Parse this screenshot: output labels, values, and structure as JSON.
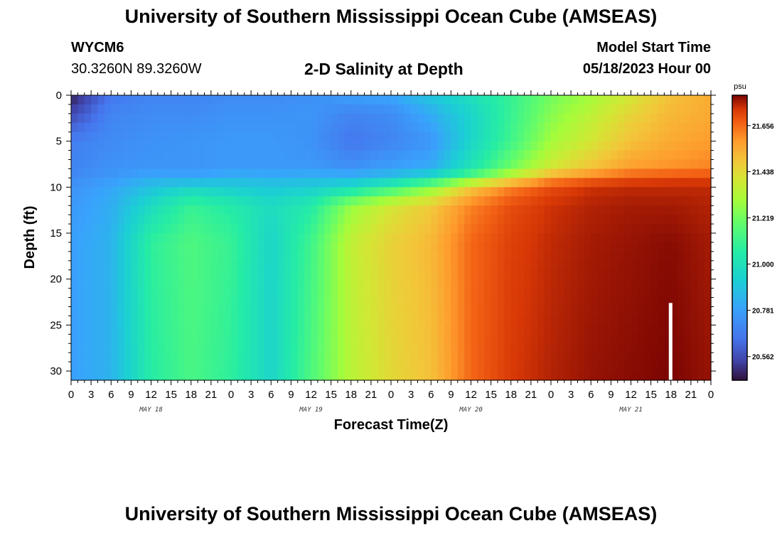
{
  "header": {
    "title": "University of Southern Mississippi Ocean Cube (AMSEAS)",
    "station_id": "WYCM6",
    "station_coords": "30.3260N  89.3260W",
    "plot_title": "2-D Salinity at Depth",
    "model_start_label": "Model Start Time",
    "model_start_value": "05/18/2023 Hour 00"
  },
  "footer": {
    "title": "University of Southern Mississippi Ocean Cube (AMSEAS)"
  },
  "chart_data": {
    "type": "heatmap",
    "xlabel": "Forecast Time(Z)",
    "ylabel": "Depth (ft)",
    "x_tick_labels": [
      "0",
      "3",
      "6",
      "9",
      "12",
      "15",
      "18",
      "21",
      "0",
      "3",
      "6",
      "9",
      "12",
      "15",
      "18",
      "21",
      "0",
      "3",
      "6",
      "9",
      "12",
      "15",
      "18",
      "21",
      "0",
      "3",
      "6",
      "9",
      "12",
      "15",
      "18",
      "21",
      "0"
    ],
    "x_range_hours": [
      0,
      96
    ],
    "date_labels": [
      {
        "label": "MAY 18",
        "hour": 12
      },
      {
        "label": "MAY 19",
        "hour": 36
      },
      {
        "label": "MAY 20",
        "hour": 60
      },
      {
        "label": "MAY 21",
        "hour": 84
      }
    ],
    "y_ticks": [
      0,
      5,
      10,
      15,
      20,
      25,
      30
    ],
    "y_range_ft": [
      0,
      31
    ],
    "y_inverted": true,
    "colorbar": {
      "unit": "psu",
      "range": [
        20.45,
        21.8
      ],
      "ticks": [
        "21.656",
        "21.438",
        "21.219",
        "21.000",
        "20.781",
        "20.562"
      ],
      "tick_values": [
        21.656,
        21.438,
        21.219,
        21.0,
        20.781,
        20.562
      ],
      "colormap": "turbo"
    },
    "current_time_marker_hour": 90,
    "grid": "off",
    "hour_nodes": [
      0,
      6,
      12,
      18,
      24,
      30,
      36,
      42,
      48,
      54,
      60,
      66,
      72,
      78,
      84,
      90,
      96
    ],
    "depth_nodes": [
      0,
      2,
      5,
      8,
      9,
      10,
      12,
      16,
      31
    ],
    "salinity_psu": [
      [
        20.47,
        20.66,
        20.7,
        20.7,
        20.72,
        20.72,
        20.73,
        20.78,
        20.8,
        20.9,
        21.0,
        21.1,
        21.22,
        21.3,
        21.4,
        21.5,
        21.55
      ],
      [
        20.55,
        20.7,
        20.72,
        20.72,
        20.74,
        20.74,
        20.75,
        20.7,
        20.72,
        20.82,
        20.95,
        21.1,
        21.25,
        21.35,
        21.45,
        21.52,
        21.55
      ],
      [
        20.68,
        20.72,
        20.74,
        20.75,
        20.76,
        20.76,
        20.74,
        20.66,
        20.7,
        20.75,
        20.95,
        21.12,
        21.3,
        21.4,
        21.5,
        21.55,
        21.58
      ],
      [
        20.7,
        20.74,
        20.75,
        20.75,
        20.76,
        20.76,
        20.76,
        20.74,
        20.78,
        20.82,
        21.02,
        21.22,
        21.4,
        21.5,
        21.58,
        21.6,
        21.62
      ],
      [
        20.72,
        20.76,
        20.82,
        20.8,
        20.85,
        20.84,
        20.85,
        20.85,
        20.9,
        21.0,
        21.2,
        21.4,
        21.58,
        21.65,
        21.7,
        21.72,
        21.72
      ],
      [
        20.74,
        20.8,
        20.88,
        20.95,
        20.92,
        20.9,
        20.92,
        20.98,
        21.1,
        21.25,
        21.48,
        21.62,
        21.7,
        21.74,
        21.75,
        21.75,
        21.75
      ],
      [
        20.76,
        20.82,
        20.98,
        21.1,
        21.05,
        20.98,
        21.05,
        21.28,
        21.4,
        21.48,
        21.62,
        21.7,
        21.74,
        21.76,
        21.77,
        21.77,
        21.76
      ],
      [
        20.78,
        20.84,
        21.08,
        21.15,
        21.1,
        20.95,
        21.12,
        21.36,
        21.46,
        21.52,
        21.66,
        21.72,
        21.75,
        21.77,
        21.78,
        21.79,
        21.77
      ],
      [
        20.78,
        20.84,
        21.06,
        21.14,
        21.08,
        20.95,
        21.15,
        21.34,
        21.44,
        21.5,
        21.66,
        21.73,
        21.76,
        21.78,
        21.79,
        21.8,
        21.78
      ]
    ]
  }
}
